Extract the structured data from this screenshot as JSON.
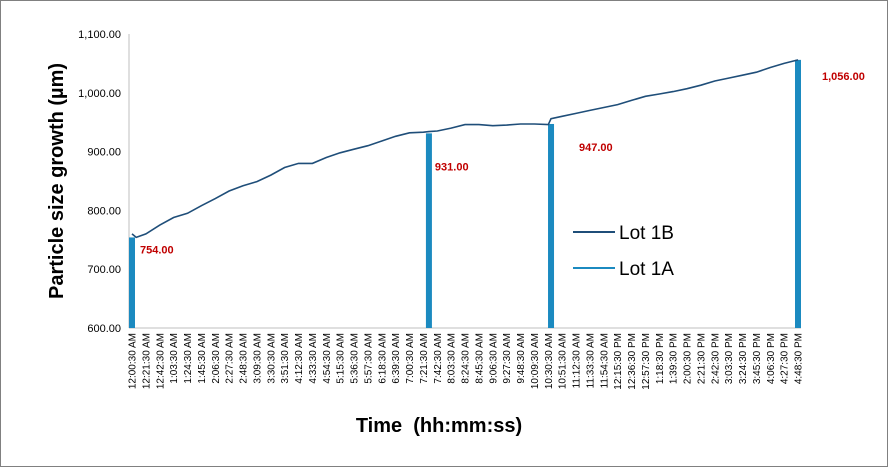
{
  "chart_data": {
    "type": "line",
    "title": "",
    "xlabel": "Time  (hh:mm:ss)",
    "ylabel": "Particle size growth (µm)",
    "ylim": [
      600,
      1100
    ],
    "yticks": [
      "600.00",
      "700.00",
      "800.00",
      "900.00",
      "1,000.00",
      "1,100.00"
    ],
    "ytick_values": [
      600,
      700,
      800,
      900,
      1000,
      1100
    ],
    "x_categories": [
      "12:00:30 AM",
      "12:21:30 AM",
      "12:42:30 AM",
      "1:03:30 AM",
      "1:24:30 AM",
      "1:45:30 AM",
      "2:06:30 AM",
      "2:27:30 AM",
      "2:48:30 AM",
      "3:09:30 AM",
      "3:30:30 AM",
      "3:51:30 AM",
      "4:12:30 AM",
      "4:33:30 AM",
      "4:54:30 AM",
      "5:15:30 AM",
      "5:36:30 AM",
      "5:57:30 AM",
      "6:18:30 AM",
      "6:39:30 AM",
      "7:00:30 AM",
      "7:21:30 AM",
      "7:42:30 AM",
      "8:03:30 AM",
      "8:24:30 AM",
      "8:45:30 AM",
      "9:06:30 AM",
      "9:27:30 AM",
      "9:48:30 AM",
      "10:09:30 AM",
      "10:30:30 AM",
      "10:51:30 AM",
      "11:12:30 AM",
      "11:33:30 AM",
      "11:54:30 AM",
      "12:15:30 PM",
      "12:36:30 PM",
      "12:57:30 PM",
      "1:18:30 PM",
      "1:39:30 PM",
      "2:00:30 PM",
      "2:21:30 PM",
      "2:42:30 PM",
      "3:03:30 PM",
      "3:24:30 PM",
      "3:45:30 PM",
      "4:06:30 PM",
      "4:27:30 PM",
      "4:48:30 PM"
    ],
    "grid": false,
    "legend_position": "right",
    "series": [
      {
        "name": "Lot 1B",
        "type": "line",
        "color": "#1f4e79",
        "x": [
          0,
          0.3,
          1,
          2,
          3,
          4,
          5,
          6,
          7,
          8,
          9,
          10,
          11,
          12,
          13,
          14,
          15,
          16,
          17,
          18,
          19,
          20,
          21,
          21.4,
          22,
          23,
          24,
          25,
          26,
          27,
          28,
          29,
          30,
          30.2,
          31,
          32,
          33,
          34,
          35,
          36,
          37,
          38,
          39,
          40,
          41,
          42,
          43,
          44,
          45,
          46,
          47,
          48
        ],
        "y": [
          760,
          754,
          760,
          775,
          788,
          795,
          808,
          820,
          833,
          842,
          849,
          860,
          873,
          880,
          880,
          890,
          898,
          904,
          910,
          918,
          926,
          932,
          933,
          934,
          935,
          940,
          946,
          946,
          944,
          945,
          947,
          947,
          946,
          956,
          960,
          965,
          970,
          975,
          980,
          987,
          994,
          998,
          1002,
          1007,
          1013,
          1020,
          1025,
          1030,
          1035,
          1043,
          1050,
          1056
        ]
      },
      {
        "name": "Lot 1A",
        "type": "bar",
        "color": "#1b8ac0",
        "x": [
          0,
          21.4,
          30.2,
          48
        ],
        "y": [
          754,
          931,
          947,
          1056
        ],
        "labels": [
          "754.00",
          "931.00",
          "947.00",
          "1,056.00"
        ]
      }
    ]
  }
}
